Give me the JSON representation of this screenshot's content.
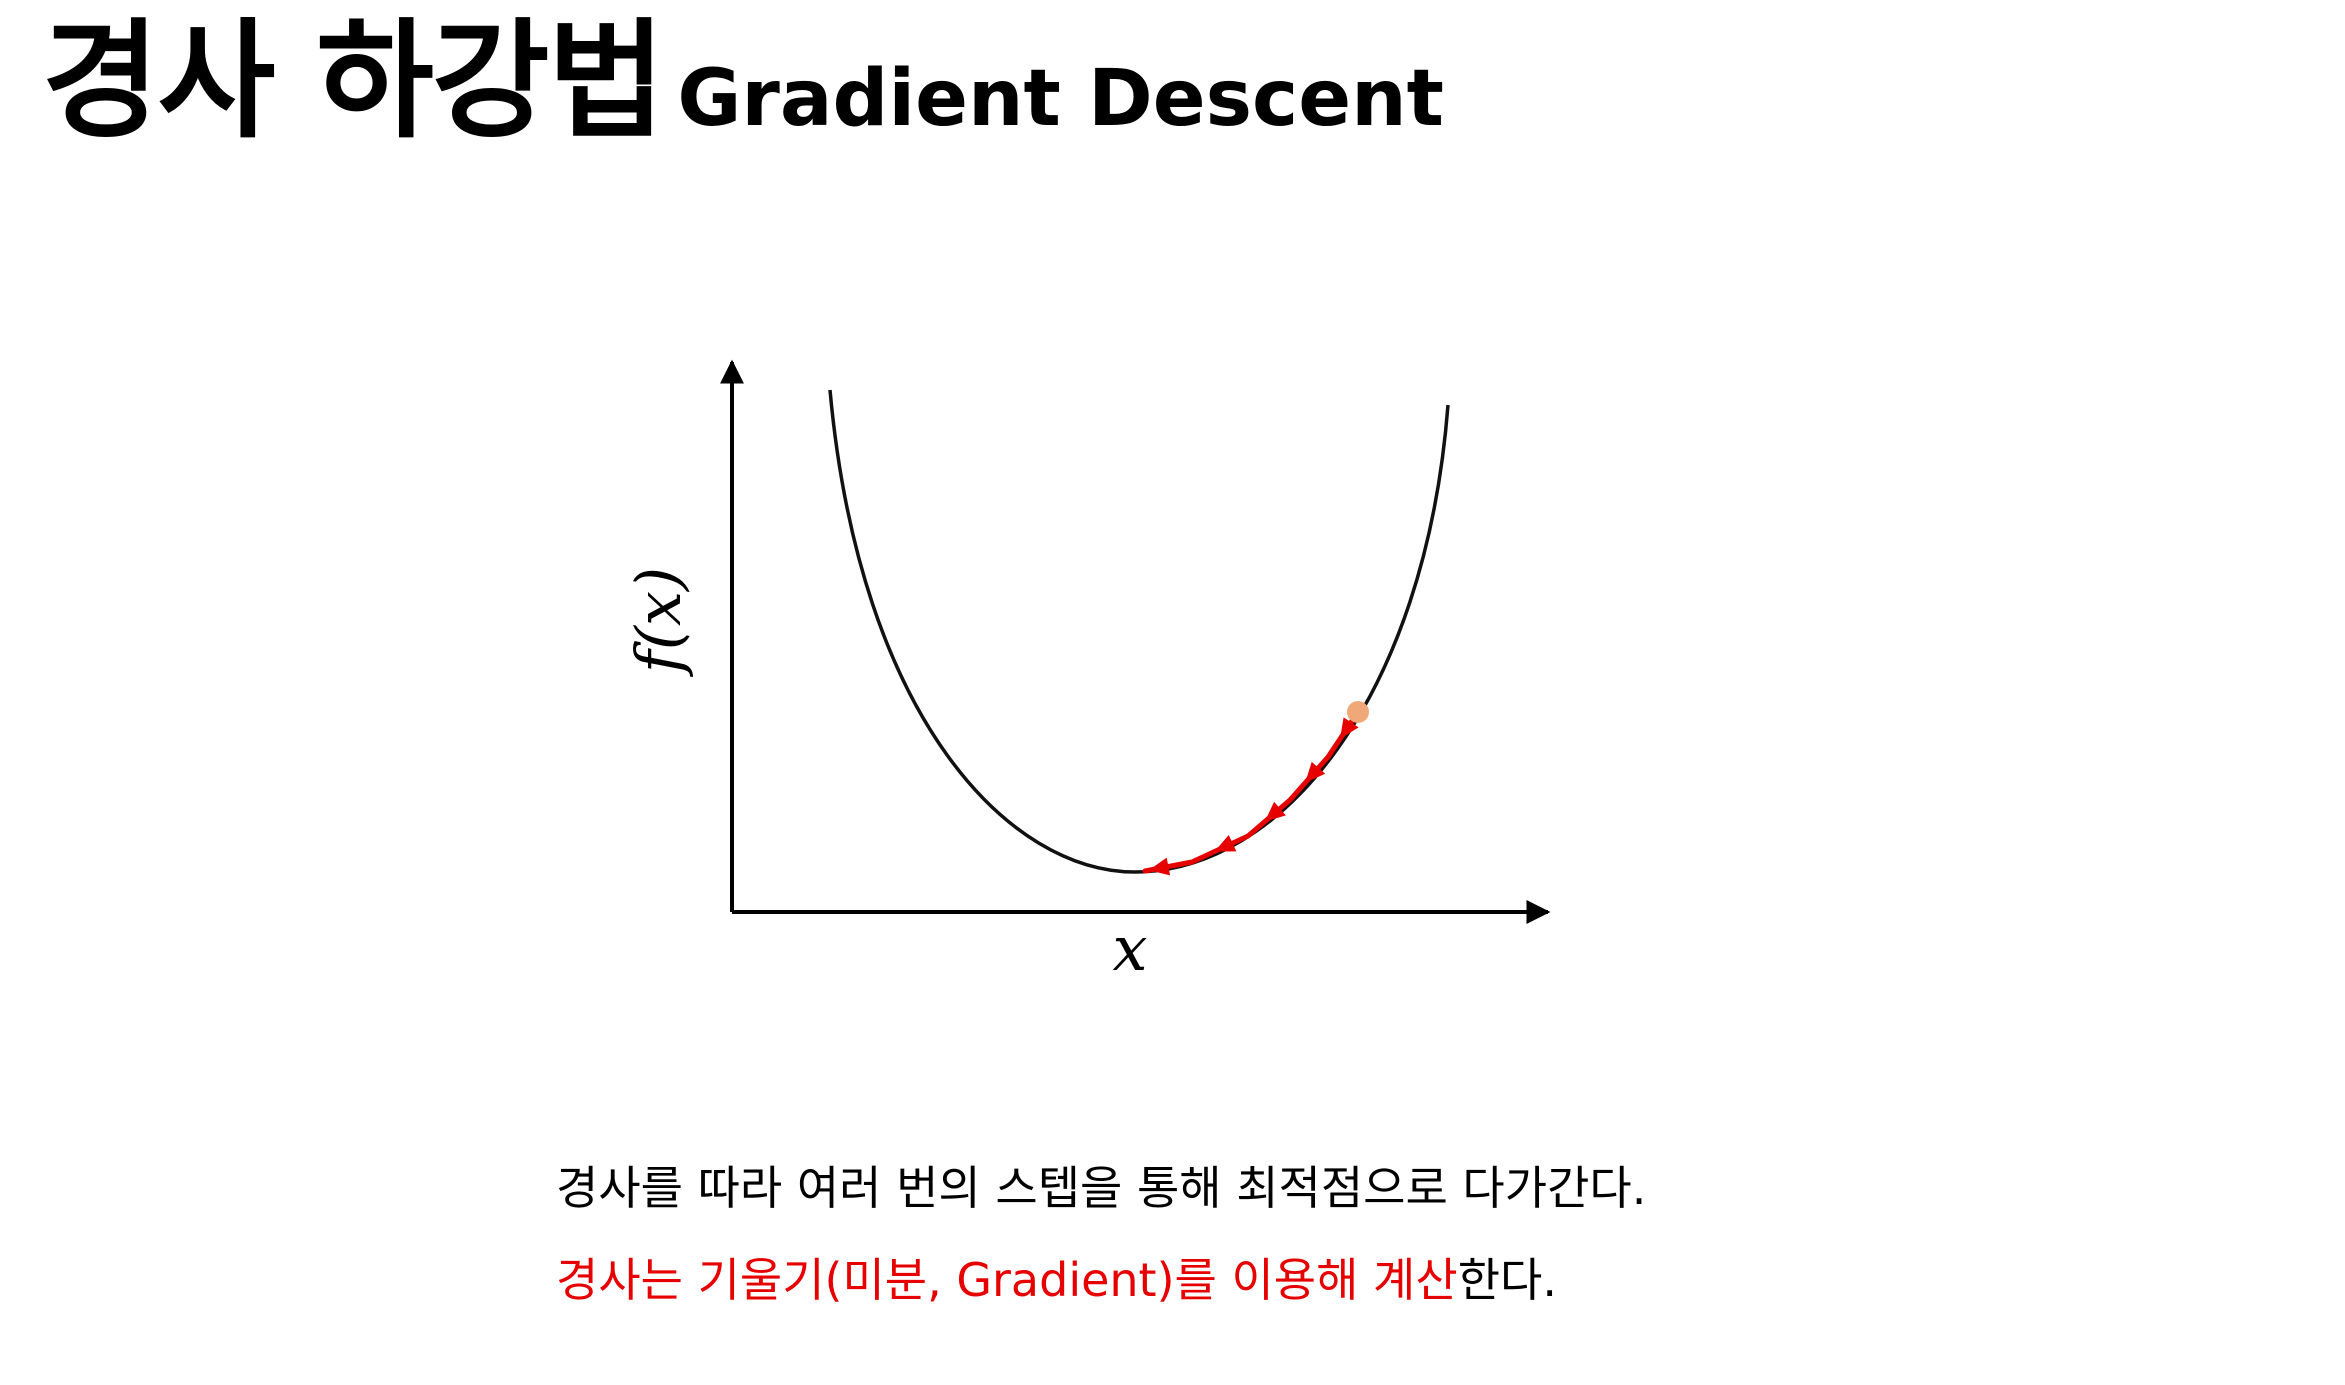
{
  "title": {
    "korean": "경사 하강법",
    "english": "Gradient Descent"
  },
  "diagram": {
    "x_axis_label": "x",
    "y_axis_label": "f(x)",
    "curve_color": "#111111",
    "path_color": "#e60000",
    "start_point_color": "#f0a878",
    "descent_steps": 6
  },
  "caption": {
    "line1": "경사를 따라 여러 번의 스텝을 통해 최적점으로 다가간다.",
    "line2_highlight": "경사는 기울기(미분, Gradient)를 이용해 계산",
    "line2_rest": "한다.",
    "highlight_color": "#e60000"
  }
}
